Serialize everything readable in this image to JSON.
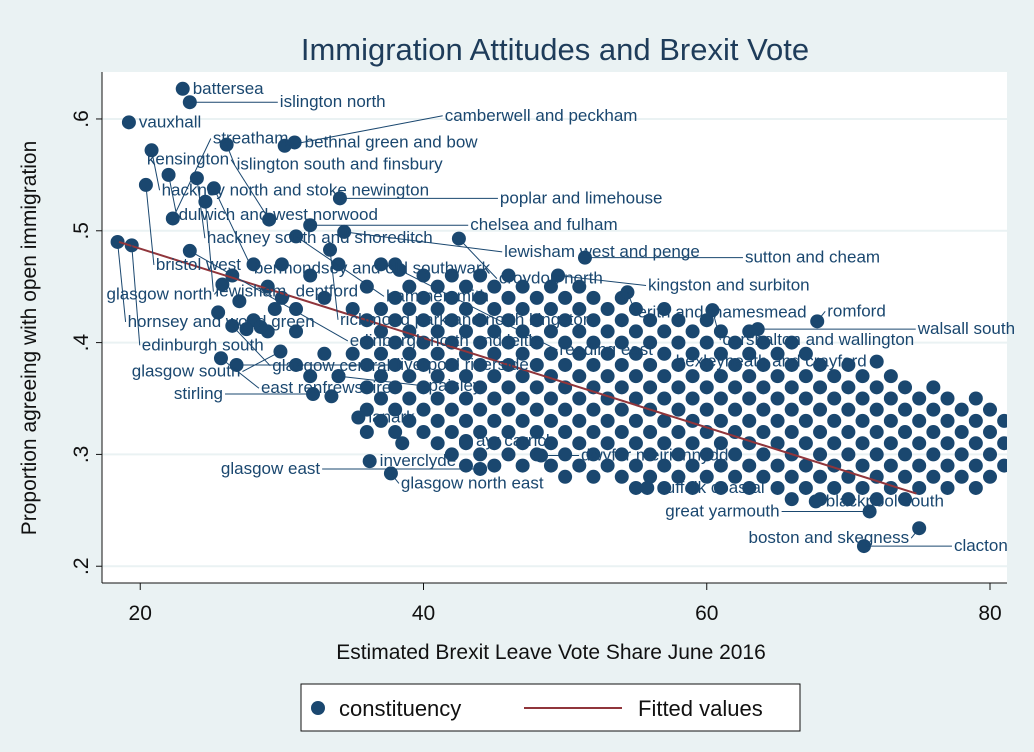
{
  "chart_data": {
    "type": "scatter",
    "title": "Immigration Attitudes and Brexit Vote",
    "xlabel": "Estimated Brexit Leave Vote Share June 2016",
    "ylabel": "Proportion agreeing with open immigration",
    "xlim": [
      17.3,
      81.2
    ],
    "ylim": [
      0.185,
      0.642
    ],
    "xticks": [
      20,
      40,
      60,
      80
    ],
    "xtick_labels": [
      "20",
      "40",
      "60",
      "80"
    ],
    "yticks": [
      0.2,
      0.3,
      0.4,
      0.5,
      0.6
    ],
    "ytick_labels": [
      ".2",
      ".3",
      ".4",
      ".5",
      ".6"
    ],
    "grid": "horizontal",
    "legend": {
      "position": "bottom",
      "entries": [
        "constituency",
        "Fitted values"
      ]
    },
    "colors": {
      "points": "#1a476f",
      "fitted": "#90353b",
      "background": "#eaf2f3",
      "plot": "#ffffff"
    },
    "series": [
      {
        "name": "constituency",
        "labelled_points": [
          {
            "label": "battersea",
            "x": 23.0,
            "y": 0.627
          },
          {
            "label": "islington north",
            "x": 23.5,
            "y": 0.615
          },
          {
            "label": "vauxhall",
            "x": 19.2,
            "y": 0.597
          },
          {
            "label": "hackney north and stoke newington",
            "x": 20.8,
            "y": 0.572
          },
          {
            "label": "islington south and finsbury",
            "x": 26.1,
            "y": 0.577
          },
          {
            "label": "bethnal green and bow",
            "x": 30.9,
            "y": 0.579
          },
          {
            "label": "camberwell and peckham",
            "x": 30.2,
            "y": 0.576
          },
          {
            "label": "dulwich and west norwood",
            "x": 22.0,
            "y": 0.55
          },
          {
            "label": "hackney south and shoreditch",
            "x": 24.0,
            "y": 0.547
          },
          {
            "label": "bristol west",
            "x": 20.4,
            "y": 0.541
          },
          {
            "label": "bermondsey and old southwark",
            "x": 25.2,
            "y": 0.538
          },
          {
            "label": "lewisham, deptford",
            "x": 24.6,
            "y": 0.526
          },
          {
            "label": "poplar and limehouse",
            "x": 34.1,
            "y": 0.529
          },
          {
            "label": "streatham",
            "x": 22.3,
            "y": 0.511
          },
          {
            "label": "kensington",
            "x": 29.1,
            "y": 0.51
          },
          {
            "label": "chelsea and fulham",
            "x": 32.0,
            "y": 0.505
          },
          {
            "label": "hammersmith",
            "x": 31.0,
            "y": 0.495
          },
          {
            "label": "lewisham west and penge",
            "x": 34.4,
            "y": 0.499
          },
          {
            "label": "croydon north",
            "x": 42.5,
            "y": 0.493
          },
          {
            "label": "hornsey and wood green",
            "x": 18.4,
            "y": 0.49
          },
          {
            "label": "edinburgh south",
            "x": 19.4,
            "y": 0.487
          },
          {
            "label": "edinburgh north and leith",
            "x": 23.5,
            "y": 0.482
          },
          {
            "label": "richmond park and north kingston",
            "x": 33.4,
            "y": 0.483
          },
          {
            "label": "sutton and cheam",
            "x": 51.4,
            "y": 0.476
          },
          {
            "label": "reading east",
            "x": 38.3,
            "y": 0.465
          },
          {
            "label": "kingston and surbiton",
            "x": 49.5,
            "y": 0.46
          },
          {
            "label": "glasgow north",
            "x": 25.8,
            "y": 0.452
          },
          {
            "label": "erith and thamesmead",
            "x": 54.4,
            "y": 0.445
          },
          {
            "label": "carshalton and wallington",
            "x": 60.4,
            "y": 0.429
          },
          {
            "label": "romford",
            "x": 67.8,
            "y": 0.419
          },
          {
            "label": "walsall south",
            "x": 63.6,
            "y": 0.412
          },
          {
            "label": "glasgow central",
            "x": 26.5,
            "y": 0.415
          },
          {
            "label": "bexleyheath and crayford",
            "x": 72.0,
            "y": 0.383
          },
          {
            "label": "glasgow south",
            "x": 29.9,
            "y": 0.392
          },
          {
            "label": "east renfrewshire",
            "x": 25.7,
            "y": 0.386
          },
          {
            "label": "liverpool riverside",
            "x": 26.8,
            "y": 0.38
          },
          {
            "label": "paisley",
            "x": 34.0,
            "y": 0.37
          },
          {
            "label": "stirling",
            "x": 32.2,
            "y": 0.354
          },
          {
            "label": "lanark",
            "x": 35.4,
            "y": 0.333
          },
          {
            "label": "ayr carrick",
            "x": 43.0,
            "y": 0.312
          },
          {
            "label": "dwyfor meirionnydd",
            "x": 48.3,
            "y": 0.299
          },
          {
            "label": "inverclyde",
            "x": 36.2,
            "y": 0.294
          },
          {
            "label": "glasgow east",
            "x": 44.0,
            "y": 0.287
          },
          {
            "label": "glasgow north east",
            "x": 37.7,
            "y": 0.283
          },
          {
            "label": "suffolk coastal",
            "x": 55.8,
            "y": 0.27
          },
          {
            "label": "blackpool south",
            "x": 67.7,
            "y": 0.258
          },
          {
            "label": "great yarmouth",
            "x": 71.5,
            "y": 0.249
          },
          {
            "label": "boston and skegness",
            "x": 75.0,
            "y": 0.234
          },
          {
            "label": "clacton",
            "x": 71.1,
            "y": 0.218
          }
        ],
        "extra_points": [
          [
            26.5,
            0.46
          ],
          [
            27,
            0.437
          ],
          [
            28,
            0.42
          ],
          [
            29,
            0.45
          ],
          [
            30,
            0.44
          ],
          [
            31,
            0.41
          ],
          [
            32,
            0.46
          ],
          [
            33,
            0.44
          ],
          [
            34,
            0.47
          ],
          [
            35,
            0.43
          ],
          [
            30,
            0.47
          ],
          [
            28,
            0.47
          ],
          [
            33,
            0.39
          ],
          [
            35,
            0.39
          ],
          [
            36,
            0.45
          ],
          [
            34,
            0.37
          ],
          [
            32,
            0.37
          ],
          [
            31,
            0.38
          ],
          [
            33.5,
            0.352
          ],
          [
            25.5,
            0.427
          ],
          [
            29,
            0.41
          ],
          [
            29.5,
            0.43
          ],
          [
            31,
            0.43
          ],
          [
            37,
            0.47
          ],
          [
            38,
            0.47
          ],
          [
            27.5,
            0.412
          ],
          [
            28.5,
            0.414
          ],
          [
            36,
            0.32
          ],
          [
            38.5,
            0.31
          ]
        ],
        "cloud": [
          {
            "x": 36,
            "y": [
              0.34,
              0.36,
              0.38,
              0.4,
              0.42
            ]
          },
          {
            "x": 37,
            "y": [
              0.33,
              0.35,
              0.37,
              0.39,
              0.41,
              0.43
            ]
          },
          {
            "x": 38,
            "y": [
              0.32,
              0.34,
              0.36,
              0.38,
              0.4,
              0.42,
              0.44
            ]
          },
          {
            "x": 39,
            "y": [
              0.33,
              0.35,
              0.37,
              0.39,
              0.41,
              0.43,
              0.45
            ]
          },
          {
            "x": 40,
            "y": [
              0.32,
              0.34,
              0.36,
              0.38,
              0.4,
              0.42,
              0.44,
              0.46
            ]
          },
          {
            "x": 41,
            "y": [
              0.31,
              0.33,
              0.35,
              0.37,
              0.39,
              0.41,
              0.43,
              0.45
            ]
          },
          {
            "x": 42,
            "y": [
              0.3,
              0.32,
              0.34,
              0.36,
              0.38,
              0.4,
              0.42,
              0.44,
              0.46
            ]
          },
          {
            "x": 43,
            "y": [
              0.29,
              0.31,
              0.33,
              0.35,
              0.37,
              0.39,
              0.41,
              0.43,
              0.45
            ]
          },
          {
            "x": 44,
            "y": [
              0.3,
              0.32,
              0.34,
              0.36,
              0.38,
              0.4,
              0.42,
              0.44,
              0.46
            ]
          },
          {
            "x": 45,
            "y": [
              0.29,
              0.31,
              0.33,
              0.35,
              0.37,
              0.39,
              0.41,
              0.43,
              0.45
            ]
          },
          {
            "x": 46,
            "y": [
              0.3,
              0.32,
              0.34,
              0.36,
              0.38,
              0.4,
              0.42,
              0.44,
              0.46
            ]
          },
          {
            "x": 47,
            "y": [
              0.29,
              0.31,
              0.33,
              0.35,
              0.37,
              0.39,
              0.41,
              0.43,
              0.45
            ]
          },
          {
            "x": 48,
            "y": [
              0.3,
              0.32,
              0.34,
              0.36,
              0.38,
              0.4,
              0.42,
              0.44
            ]
          },
          {
            "x": 49,
            "y": [
              0.29,
              0.31,
              0.33,
              0.35,
              0.37,
              0.39,
              0.41,
              0.43,
              0.45
            ]
          },
          {
            "x": 50,
            "y": [
              0.28,
              0.3,
              0.32,
              0.34,
              0.36,
              0.38,
              0.4,
              0.42,
              0.44
            ]
          },
          {
            "x": 51,
            "y": [
              0.29,
              0.31,
              0.33,
              0.35,
              0.37,
              0.39,
              0.41,
              0.43,
              0.45
            ]
          },
          {
            "x": 52,
            "y": [
              0.28,
              0.3,
              0.32,
              0.34,
              0.36,
              0.38,
              0.4,
              0.42,
              0.44
            ]
          },
          {
            "x": 53,
            "y": [
              0.29,
              0.31,
              0.33,
              0.35,
              0.37,
              0.39,
              0.41,
              0.43
            ]
          },
          {
            "x": 54,
            "y": [
              0.28,
              0.3,
              0.32,
              0.34,
              0.36,
              0.38,
              0.4,
              0.42,
              0.44
            ]
          },
          {
            "x": 55,
            "y": [
              0.27,
              0.29,
              0.31,
              0.33,
              0.35,
              0.37,
              0.39,
              0.41,
              0.43
            ]
          },
          {
            "x": 56,
            "y": [
              0.28,
              0.3,
              0.32,
              0.34,
              0.36,
              0.38,
              0.4,
              0.42
            ]
          },
          {
            "x": 57,
            "y": [
              0.27,
              0.29,
              0.31,
              0.33,
              0.35,
              0.37,
              0.39,
              0.41,
              0.43
            ]
          },
          {
            "x": 58,
            "y": [
              0.28,
              0.3,
              0.32,
              0.34,
              0.36,
              0.38,
              0.4,
              0.42
            ]
          },
          {
            "x": 59,
            "y": [
              0.27,
              0.29,
              0.31,
              0.33,
              0.35,
              0.37,
              0.39,
              0.41
            ]
          },
          {
            "x": 60,
            "y": [
              0.28,
              0.3,
              0.32,
              0.34,
              0.36,
              0.38,
              0.4,
              0.42
            ]
          },
          {
            "x": 61,
            "y": [
              0.27,
              0.29,
              0.31,
              0.33,
              0.35,
              0.37,
              0.39,
              0.41
            ]
          },
          {
            "x": 62,
            "y": [
              0.28,
              0.3,
              0.32,
              0.34,
              0.36,
              0.38,
              0.4
            ]
          },
          {
            "x": 63,
            "y": [
              0.27,
              0.29,
              0.31,
              0.33,
              0.35,
              0.37,
              0.39,
              0.41
            ]
          },
          {
            "x": 64,
            "y": [
              0.28,
              0.3,
              0.32,
              0.34,
              0.36,
              0.38,
              0.4
            ]
          },
          {
            "x": 65,
            "y": [
              0.27,
              0.29,
              0.31,
              0.33,
              0.35,
              0.37,
              0.39
            ]
          },
          {
            "x": 66,
            "y": [
              0.26,
              0.28,
              0.3,
              0.32,
              0.34,
              0.36,
              0.38,
              0.4
            ]
          },
          {
            "x": 67,
            "y": [
              0.27,
              0.29,
              0.31,
              0.33,
              0.35,
              0.37,
              0.39
            ]
          },
          {
            "x": 68,
            "y": [
              0.26,
              0.28,
              0.3,
              0.32,
              0.34,
              0.36,
              0.38
            ]
          },
          {
            "x": 69,
            "y": [
              0.27,
              0.29,
              0.31,
              0.33,
              0.35,
              0.37
            ]
          },
          {
            "x": 70,
            "y": [
              0.26,
              0.28,
              0.3,
              0.32,
              0.34,
              0.36,
              0.38
            ]
          },
          {
            "x": 71,
            "y": [
              0.27,
              0.29,
              0.31,
              0.33,
              0.35,
              0.37
            ]
          },
          {
            "x": 72,
            "y": [
              0.26,
              0.28,
              0.3,
              0.32,
              0.34,
              0.36
            ]
          },
          {
            "x": 73,
            "y": [
              0.27,
              0.29,
              0.31,
              0.33,
              0.35,
              0.37
            ]
          },
          {
            "x": 74,
            "y": [
              0.26,
              0.28,
              0.3,
              0.32,
              0.34,
              0.36
            ]
          },
          {
            "x": 75,
            "y": [
              0.27,
              0.29,
              0.31,
              0.33,
              0.35
            ]
          },
          {
            "x": 76,
            "y": [
              0.28,
              0.3,
              0.32,
              0.34,
              0.36
            ]
          },
          {
            "x": 77,
            "y": [
              0.27,
              0.29,
              0.31,
              0.33,
              0.35
            ]
          },
          {
            "x": 78,
            "y": [
              0.28,
              0.3,
              0.32,
              0.34
            ]
          },
          {
            "x": 79,
            "y": [
              0.27,
              0.29,
              0.31,
              0.33,
              0.35
            ]
          },
          {
            "x": 80,
            "y": [
              0.28,
              0.3,
              0.32,
              0.34
            ]
          },
          {
            "x": 81,
            "y": [
              0.29,
              0.31,
              0.33
            ]
          },
          {
            "x": 82,
            "y": [
              0.28,
              0.3,
              0.32
            ]
          }
        ]
      },
      {
        "name": "Fitted values",
        "type": "line",
        "x": [
          18.5,
          74.8
        ],
        "y": [
          0.49,
          0.265
        ]
      }
    ]
  }
}
